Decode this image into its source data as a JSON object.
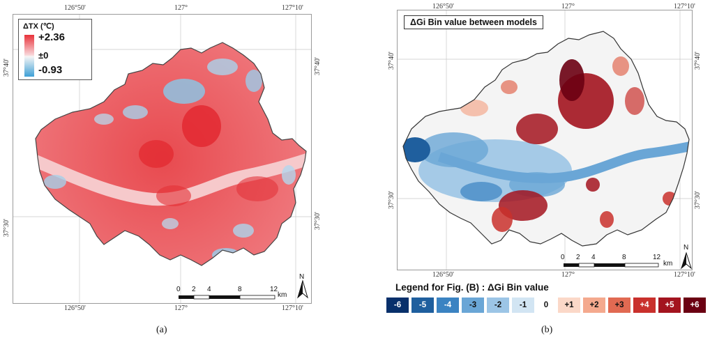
{
  "map_a": {
    "legend": {
      "title": "ΔTX (℃)",
      "max": "+2.36",
      "mid": "±0",
      "min": "-0.93"
    },
    "coords": {
      "top": [
        "126°50'",
        "127°",
        "127°10'"
      ],
      "bottom": [
        "126°50'",
        "127°",
        "127°10'"
      ],
      "left": [
        "37°40'",
        "37°30'"
      ],
      "right": [
        "37°40'",
        "37°30'"
      ]
    },
    "scale": {
      "ticks": [
        "0",
        "2",
        "4",
        "8",
        "12"
      ],
      "unit": "km"
    },
    "north": "N",
    "caption": "(a)"
  },
  "map_b": {
    "title": "ΔGi Bin value between models",
    "coords": {
      "top": [
        "126°50'",
        "127°",
        "127°10'"
      ],
      "bottom": [
        "126°50'",
        "127°",
        "127°10'"
      ],
      "left": [
        "37°40'",
        "37°30'"
      ],
      "right": [
        "37°40'",
        "37°30'"
      ]
    },
    "scale": {
      "ticks": [
        "0",
        "2",
        "4",
        "8",
        "12"
      ],
      "unit": "km"
    },
    "north": "N",
    "caption": "(b)"
  },
  "legend_b": {
    "title": "Legend for Fig. (B) : ΔGi Bin value",
    "bins": [
      {
        "label": "-6",
        "color": "#08306b",
        "text": "#ffffff"
      },
      {
        "label": "-5",
        "color": "#1f5f9e",
        "text": "#ffffff"
      },
      {
        "label": "-4",
        "color": "#3b83c2",
        "text": "#ffffff"
      },
      {
        "label": "-3",
        "color": "#6aa6d6",
        "text": "#111111"
      },
      {
        "label": "-2",
        "color": "#9cc5e6",
        "text": "#111111"
      },
      {
        "label": "-1",
        "color": "#d2e5f3",
        "text": "#111111"
      },
      {
        "label": "0",
        "color": "",
        "text": "#111111"
      },
      {
        "label": "+1",
        "color": "#fbd8c8",
        "text": "#111111"
      },
      {
        "label": "+2",
        "color": "#f4a98e",
        "text": "#111111"
      },
      {
        "label": "+3",
        "color": "#e16a52",
        "text": "#111111"
      },
      {
        "label": "+4",
        "color": "#c9302c",
        "text": "#ffffff"
      },
      {
        "label": "+5",
        "color": "#a3141f",
        "text": "#ffffff"
      },
      {
        "label": "+6",
        "color": "#6b0012",
        "text": "#ffffff"
      }
    ]
  }
}
